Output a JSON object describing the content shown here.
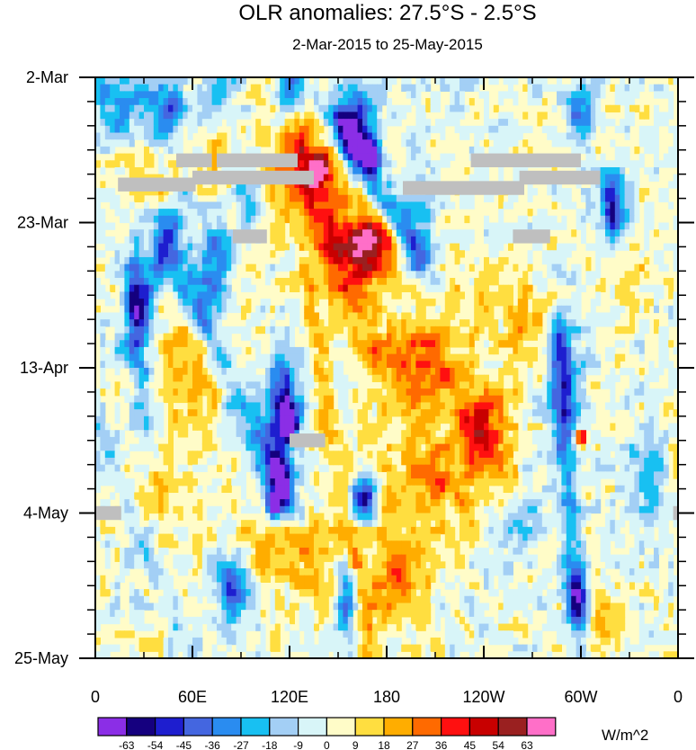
{
  "chart_data": {
    "type": "heatmap",
    "title": "OLR anomalies: 27.5°S - 2.5°S",
    "subtitle": "2-Mar-2015 to 25-May-2015",
    "x_ticks": [
      "0",
      "60E",
      "120E",
      "180",
      "120W",
      "60W",
      "0"
    ],
    "x_tick_lon": [
      0,
      60,
      120,
      180,
      240,
      300,
      360
    ],
    "y_ticks": [
      "2-Mar",
      "23-Mar",
      "13-Apr",
      "4-May",
      "25-May"
    ],
    "y_tick_day": [
      0,
      21,
      42,
      63,
      84
    ],
    "xlim": [
      0,
      360
    ],
    "ylim_days": [
      0,
      84
    ],
    "colorbar": {
      "unit": "W/m^2",
      "labels": [
        "-63",
        "-54",
        "-45",
        "-36",
        "-27",
        "-18",
        "-9",
        "0",
        "9",
        "18",
        "27",
        "36",
        "45",
        "54",
        "63"
      ],
      "colors": [
        "#8b2ee6",
        "#15007f",
        "#1e1ecf",
        "#4466e0",
        "#2a8cf0",
        "#18c0f2",
        "#a3cff5",
        "#d8f5f8",
        "#fffcc8",
        "#ffde40",
        "#ffad00",
        "#ff6a00",
        "#ff1010",
        "#c80000",
        "#9a2020",
        "#ff6fc8"
      ]
    },
    "missing_color": "#bfbfbf",
    "missing_segments": [
      {
        "lon": [
          14,
          62
        ],
        "day": [
          14.5,
          16.5
        ]
      },
      {
        "lon": [
          50,
          72
        ],
        "day": [
          11,
          13
        ]
      },
      {
        "lon": [
          75,
          125
        ],
        "day": [
          11,
          13
        ]
      },
      {
        "lon": [
          60,
          135
        ],
        "day": [
          13.5,
          15.5
        ]
      },
      {
        "lon": [
          85,
          106
        ],
        "day": [
          22,
          24
        ]
      },
      {
        "lon": [
          190,
          265
        ],
        "day": [
          15,
          17
        ]
      },
      {
        "lon": [
          232,
          300
        ],
        "day": [
          11,
          13
        ]
      },
      {
        "lon": [
          262,
          312
        ],
        "day": [
          13.5,
          15.5
        ]
      },
      {
        "lon": [
          258,
          281
        ],
        "day": [
          22,
          24
        ]
      },
      {
        "lon": [
          120,
          142
        ],
        "day": [
          51.5,
          53.5
        ]
      },
      {
        "lon": [
          0,
          16
        ],
        "day": [
          62,
          64
        ]
      },
      {
        "lon": [
          357,
          360
        ],
        "day": [
          62,
          64
        ]
      }
    ],
    "blobs": [
      {
        "lon": 52,
        "day": 10,
        "w": 30,
        "h": 7,
        "v": 28
      },
      {
        "lon": 130,
        "day": 14,
        "w": 22,
        "h": 7,
        "v": 35
      },
      {
        "lon": 138,
        "day": 13,
        "w": 6,
        "h": 2,
        "v": 48
      },
      {
        "lon": 165,
        "day": 25,
        "w": 28,
        "h": 8,
        "v": 34
      },
      {
        "lon": 168,
        "day": 24,
        "w": 12,
        "h": 3,
        "v": 44
      },
      {
        "lon": 195,
        "day": 43,
        "w": 22,
        "h": 7,
        "v": 32
      },
      {
        "lon": 240,
        "day": 50,
        "w": 18,
        "h": 6,
        "v": 30
      },
      {
        "lon": 210,
        "day": 58,
        "w": 30,
        "h": 7,
        "v": 26
      },
      {
        "lon": 120,
        "day": 68,
        "w": 40,
        "h": 8,
        "v": 20
      },
      {
        "lon": 185,
        "day": 72,
        "w": 18,
        "h": 7,
        "v": 24
      },
      {
        "lon": 60,
        "day": 42,
        "w": 28,
        "h": 10,
        "v": 22
      },
      {
        "lon": 40,
        "day": 60,
        "w": 20,
        "h": 6,
        "v": 16
      },
      {
        "lon": 268,
        "day": 36,
        "w": 18,
        "h": 6,
        "v": 18
      },
      {
        "lon": 308,
        "day": 78,
        "w": 16,
        "h": 6,
        "v": 22
      },
      {
        "lon": 300,
        "day": 52,
        "w": 3,
        "h": 1.3,
        "v": 55
      },
      {
        "lon": 333,
        "day": 30,
        "w": 14,
        "h": 6,
        "v": 14
      },
      {
        "lon": 235,
        "day": 33,
        "w": 16,
        "h": 6,
        "v": 16
      },
      {
        "lon": 15,
        "day": 4,
        "w": 18,
        "h": 5,
        "v": -32
      },
      {
        "lon": 45,
        "day": 6,
        "w": 16,
        "h": 6,
        "v": -48
      },
      {
        "lon": 118,
        "day": 2,
        "w": 8,
        "h": 5,
        "v": -52
      },
      {
        "lon": 160,
        "day": 7,
        "w": 12,
        "h": 6,
        "v": -55
      },
      {
        "lon": 170,
        "day": 11,
        "w": 6,
        "h": 2,
        "v": -68
      },
      {
        "lon": 300,
        "day": 5,
        "w": 10,
        "h": 4,
        "v": -36
      },
      {
        "lon": 320,
        "day": 19,
        "w": 8,
        "h": 5,
        "v": -56
      },
      {
        "lon": 25,
        "day": 31,
        "w": 8,
        "h": 6,
        "v": -50
      },
      {
        "lon": 72,
        "day": 28,
        "w": 10,
        "h": 7,
        "v": -40
      },
      {
        "lon": 115,
        "day": 46,
        "w": 10,
        "h": 7,
        "v": -54
      },
      {
        "lon": 120,
        "day": 50,
        "w": 6,
        "h": 2.5,
        "v": -62
      },
      {
        "lon": 115,
        "day": 58,
        "w": 8,
        "h": 4,
        "v": -60
      },
      {
        "lon": 110,
        "day": 62,
        "w": 4,
        "h": 1.5,
        "v": -68
      },
      {
        "lon": 165,
        "day": 61,
        "w": 8,
        "h": 3,
        "v": -58
      },
      {
        "lon": 85,
        "day": 74,
        "w": 10,
        "h": 5,
        "v": -46
      },
      {
        "lon": 155,
        "day": 75,
        "w": 6,
        "h": 5,
        "v": -42
      },
      {
        "lon": 290,
        "day": 44,
        "w": 10,
        "h": 10,
        "v": -32
      },
      {
        "lon": 298,
        "day": 75,
        "w": 8,
        "h": 4,
        "v": -48
      },
      {
        "lon": 30,
        "day": 44,
        "w": 8,
        "h": 8,
        "v": -26
      },
      {
        "lon": 262,
        "day": 63,
        "w": 14,
        "h": 6,
        "v": -22
      },
      {
        "lon": 340,
        "day": 57,
        "w": 12,
        "h": 8,
        "v": -18
      },
      {
        "lon": 200,
        "day": 23,
        "w": 12,
        "h": 8,
        "v": -22
      },
      {
        "lon": 94,
        "day": 17,
        "w": 8,
        "h": 4,
        "v": -26
      }
    ],
    "bands": [
      {
        "lon0": 40,
        "day0": 22,
        "lon1": 120,
        "day1": 62,
        "width": 9,
        "v": -30
      },
      {
        "lon0": 150,
        "day0": 6,
        "lon1": 200,
        "day1": 26,
        "width": 8,
        "v": -34
      },
      {
        "lon0": 80,
        "day0": 0,
        "lon1": 20,
        "day1": 40,
        "width": 7,
        "v": -22
      },
      {
        "lon0": 285,
        "day0": 36,
        "lon1": 300,
        "day1": 84,
        "width": 6,
        "v": -26
      },
      {
        "lon0": 130,
        "day0": 28,
        "lon1": 170,
        "day1": 84,
        "width": 7,
        "v": 16
      },
      {
        "lon0": 110,
        "day0": 0,
        "lon1": 170,
        "day1": 40,
        "width": 9,
        "v": 18
      },
      {
        "lon0": 200,
        "day0": 36,
        "lon1": 260,
        "day1": 60,
        "width": 8,
        "v": 18
      },
      {
        "lon0": 0,
        "day0": 50,
        "lon1": 60,
        "day1": 84,
        "width": 7,
        "v": -14
      }
    ]
  }
}
